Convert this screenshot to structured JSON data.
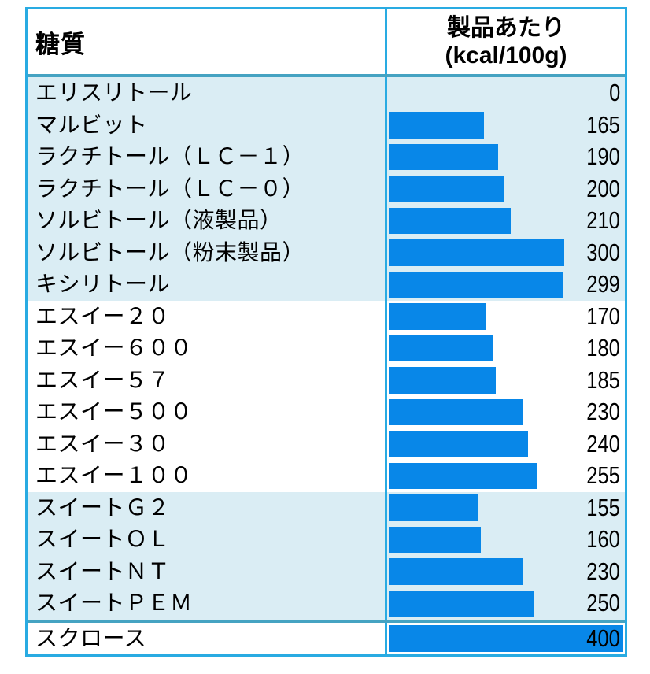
{
  "table": {
    "header": {
      "sugar_col": "糖質",
      "value_col_line1": "製品あたり",
      "value_col_line2": "(kcal/100g)"
    },
    "sections": [
      {
        "tint": true,
        "divider_above": false,
        "rows": [
          {
            "name": "エリスリトール",
            "value": 0
          },
          {
            "name": "マルビット",
            "value": 165
          },
          {
            "name": "ラクチトール（ＬＣ－１）",
            "value": 190
          },
          {
            "name": "ラクチトール（ＬＣ－０）",
            "value": 200
          },
          {
            "name": "ソルビトール（液製品）",
            "value": 210
          },
          {
            "name": "ソルビトール（粉末製品）",
            "value": 300
          },
          {
            "name": "キシリトール",
            "value": 299
          }
        ]
      },
      {
        "tint": false,
        "divider_above": false,
        "rows": [
          {
            "name": "エスイー２０",
            "value": 170
          },
          {
            "name": "エスイー６００",
            "value": 180
          },
          {
            "name": "エスイー５７",
            "value": 185
          },
          {
            "name": "エスイー５００",
            "value": 230
          },
          {
            "name": "エスイー３０",
            "value": 240
          },
          {
            "name": "エスイー１００",
            "value": 255
          }
        ]
      },
      {
        "tint": true,
        "divider_above": false,
        "rows": [
          {
            "name": "スイートＧ２",
            "value": 155
          },
          {
            "name": "スイートＯＬ",
            "value": 160
          },
          {
            "name": "スイートＮＴ",
            "value": 230
          },
          {
            "name": "スイートＰＥＭ",
            "value": 250
          }
        ]
      },
      {
        "tint": false,
        "divider_above": true,
        "rows": [
          {
            "name": "スクロース",
            "value": 400
          }
        ]
      }
    ]
  },
  "colors": {
    "border_cyan": "#29abe2",
    "divider_teal": "#45a3c2",
    "bar_blue": "#0887e8",
    "tint_background": "#daedf4",
    "text": "#000000"
  },
  "chart_data": {
    "type": "bar",
    "orientation": "horizontal",
    "categories": [
      "エリスリトール",
      "マルビット",
      "ラクチトール（ＬＣ－１）",
      "ラクチトール（ＬＣ－０）",
      "ソルビトール（液製品）",
      "ソルビトール（粉末製品）",
      "キシリトール",
      "エスイー２０",
      "エスイー６００",
      "エスイー５７",
      "エスイー５００",
      "エスイー３０",
      "エスイー１００",
      "スイートＧ２",
      "スイートＯＬ",
      "スイートＮＴ",
      "スイートＰＥＭ",
      "スクロース"
    ],
    "values": [
      0,
      165,
      190,
      200,
      210,
      300,
      299,
      170,
      180,
      185,
      230,
      240,
      255,
      155,
      160,
      230,
      250,
      400
    ],
    "title": "糖質 製品あたり(kcal/100g)",
    "xlabel": "製品あたり(kcal/100g)",
    "ylabel": "糖質",
    "xlim": [
      0,
      400
    ],
    "grid": false,
    "legend": false,
    "data_labels": true
  }
}
